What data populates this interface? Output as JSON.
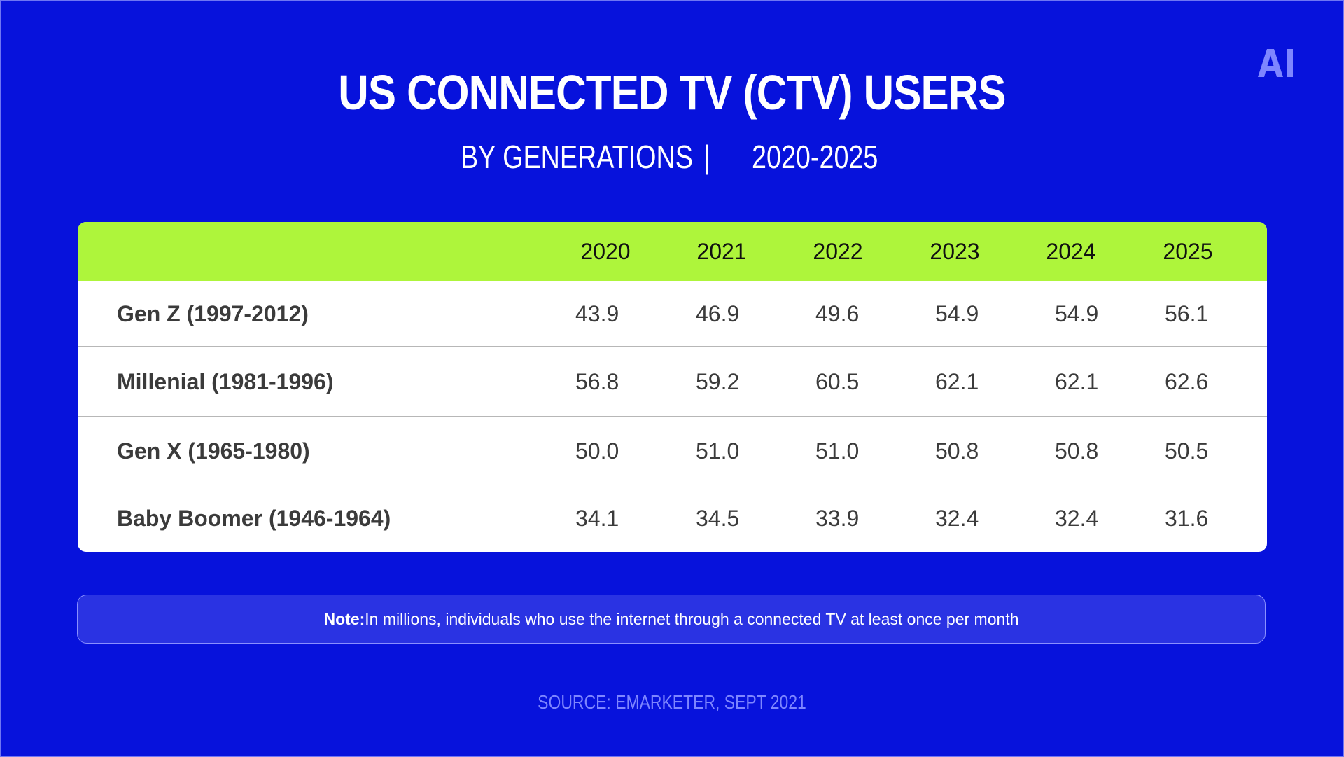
{
  "title": "US CONNECTED TV (CTV) USERS",
  "subtitle_left": "BY GENERATIONS",
  "subtitle_separator": "|",
  "subtitle_right": "2020-2025",
  "logo_text": "AI",
  "colors": {
    "background": "#0712dc",
    "header": "#aef53b",
    "table_bg": "#ffffff",
    "note_bg": "#2a33e3",
    "source_text": "#7e86ff"
  },
  "chart_data": {
    "type": "table",
    "title": "US CONNECTED TV (CTV) USERS",
    "subtitle": "BY GENERATIONS | 2020-2025",
    "columns": [
      "2020",
      "2021",
      "2022",
      "2023",
      "2024",
      "2025"
    ],
    "rows": [
      {
        "label": "Gen Z (1997-2012)",
        "values": [
          "43.9",
          "46.9",
          "49.6",
          "54.9",
          "54.9",
          "56.1"
        ]
      },
      {
        "label": "Millenial (1981-1996)",
        "values": [
          "56.8",
          "59.2",
          "60.5",
          "62.1",
          "62.1",
          "62.6"
        ]
      },
      {
        "label": "Gen X (1965-1980)",
        "values": [
          "50.0",
          "51.0",
          "51.0",
          "50.8",
          "50.8",
          "50.5"
        ]
      },
      {
        "label": "Baby Boomer (1946-1964)",
        "values": [
          "34.1",
          "34.5",
          "33.9",
          "32.4",
          "32.4",
          "31.6"
        ]
      }
    ],
    "unit": "millions"
  },
  "note": {
    "label": "Note:",
    "text": "In millions, individuals who use the internet through a connected TV at least once per month"
  },
  "source": "SOURCE: EMARKETER, SEPT 2021"
}
